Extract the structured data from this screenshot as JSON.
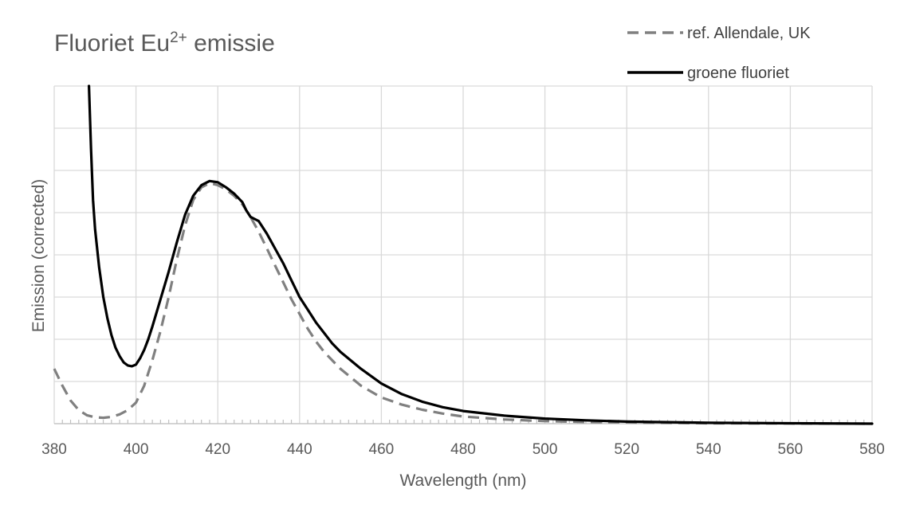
{
  "chart_data": {
    "type": "line",
    "title": "Fluoriet Eu",
    "title_superscript": "2+",
    "title_suffix": " emissie",
    "xlabel": "Wavelength (nm)",
    "ylabel": "Emission (corrected)",
    "xlim": [
      380,
      580
    ],
    "ylim": [
      0,
      8
    ],
    "x_ticks": [
      380,
      400,
      420,
      440,
      460,
      480,
      500,
      520,
      540,
      560,
      580
    ],
    "y_gridlines": [
      0,
      1,
      2,
      3,
      4,
      5,
      6,
      7,
      8
    ],
    "grid": true,
    "legend_position": "top-right",
    "series": [
      {
        "name": "ref. Allendale, UK",
        "color": "#808080",
        "style": "dashed",
        "x": [
          380,
          382,
          384,
          386,
          388,
          390,
          392,
          394,
          396,
          398,
          400,
          402,
          404,
          406,
          408,
          410,
          412,
          414,
          416,
          418,
          420,
          422,
          424,
          426,
          428,
          430,
          432,
          434,
          436,
          438,
          440,
          442,
          444,
          446,
          448,
          450,
          455,
          460,
          465,
          470,
          475,
          480,
          490,
          500,
          510,
          520,
          540,
          560,
          580
        ],
        "y": [
          1.3,
          0.9,
          0.55,
          0.32,
          0.2,
          0.15,
          0.14,
          0.16,
          0.22,
          0.32,
          0.5,
          0.9,
          1.5,
          2.2,
          3.0,
          3.9,
          4.7,
          5.3,
          5.6,
          5.7,
          5.65,
          5.55,
          5.4,
          5.2,
          4.9,
          4.55,
          4.15,
          3.75,
          3.35,
          2.95,
          2.6,
          2.25,
          1.95,
          1.7,
          1.5,
          1.3,
          0.9,
          0.62,
          0.45,
          0.33,
          0.24,
          0.17,
          0.1,
          0.06,
          0.04,
          0.03,
          0.01,
          0.005,
          0.0
        ]
      },
      {
        "name": "groene fluoriet",
        "color": "#000000",
        "style": "solid",
        "x": [
          388.5,
          389,
          389.5,
          390,
          391,
          392,
          393,
          394,
          395,
          396,
          397,
          398,
          399,
          400,
          401,
          402,
          403,
          404,
          406,
          408,
          410,
          412,
          414,
          416,
          418,
          420,
          422,
          424,
          426,
          427,
          428,
          429,
          430,
          432,
          434,
          436,
          438,
          440,
          442,
          444,
          446,
          448,
          450,
          455,
          460,
          465,
          470,
          475,
          480,
          490,
          500,
          510,
          520,
          540,
          560,
          580
        ],
        "y": [
          8.0,
          6.5,
          5.3,
          4.6,
          3.7,
          3.0,
          2.5,
          2.1,
          1.8,
          1.6,
          1.45,
          1.38,
          1.36,
          1.4,
          1.55,
          1.75,
          2.0,
          2.3,
          2.95,
          3.6,
          4.3,
          4.95,
          5.4,
          5.65,
          5.75,
          5.72,
          5.6,
          5.45,
          5.25,
          5.05,
          4.9,
          4.85,
          4.8,
          4.5,
          4.15,
          3.8,
          3.4,
          3.0,
          2.7,
          2.4,
          2.15,
          1.9,
          1.7,
          1.3,
          0.95,
          0.7,
          0.52,
          0.39,
          0.3,
          0.19,
          0.12,
          0.08,
          0.05,
          0.02,
          0.01,
          0.0
        ]
      }
    ]
  }
}
